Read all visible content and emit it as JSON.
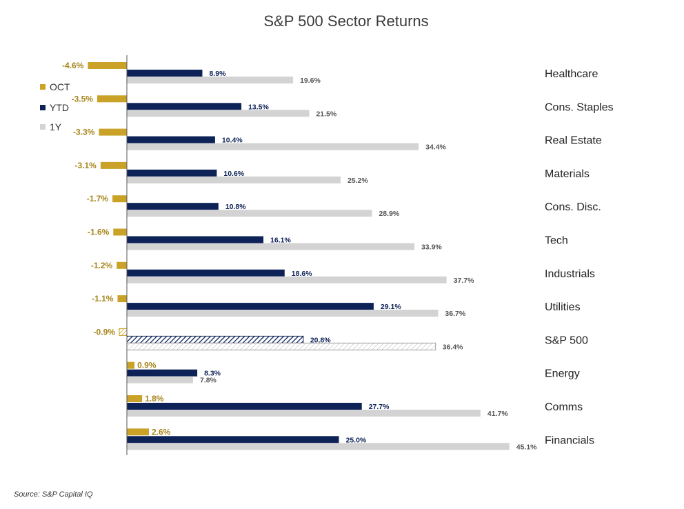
{
  "chart_data": {
    "type": "bar",
    "orientation": "horizontal",
    "title": "S&P 500 Sector Returns",
    "categories": [
      "Healthcare",
      "Cons. Staples",
      "Real Estate",
      "Materials",
      "Cons. Disc.",
      "Tech",
      "Industrials",
      "Utilities",
      "S&P 500",
      "Energy",
      "Comms",
      "Financials"
    ],
    "series": [
      {
        "name": "OCT",
        "color": "#c9a227",
        "values": [
          -4.6,
          -3.5,
          -3.3,
          -3.1,
          -1.7,
          -1.6,
          -1.2,
          -1.1,
          -0.9,
          0.9,
          1.8,
          2.6
        ],
        "labels": [
          "-4.6%",
          "-3.5%",
          "-3.3%",
          "-3.1%",
          "-1.7%",
          "-1.6%",
          "-1.2%",
          "-1.1%",
          "-0.9%",
          "0.9%",
          "1.8%",
          "2.6%"
        ]
      },
      {
        "name": "YTD",
        "color": "#0d2257",
        "values": [
          8.9,
          13.5,
          10.4,
          10.6,
          10.8,
          16.1,
          18.6,
          29.1,
          20.8,
          8.3,
          27.7,
          25.0
        ],
        "labels": [
          "8.9%",
          "13.5%",
          "10.4%",
          "10.6%",
          "10.8%",
          "16.1%",
          "18.6%",
          "29.1%",
          "20.8%",
          "8.3%",
          "27.7%",
          "25.0%"
        ]
      },
      {
        "name": "1Y",
        "color": "#d3d3d3",
        "values": [
          19.6,
          21.5,
          34.4,
          25.2,
          28.9,
          33.9,
          37.7,
          36.7,
          36.4,
          7.8,
          41.7,
          45.1
        ],
        "labels": [
          "19.6%",
          "21.5%",
          "34.4%",
          "25.2%",
          "28.9%",
          "33.9%",
          "37.7%",
          "36.7%",
          "36.4%",
          "7.8%",
          "41.7%",
          "45.1%"
        ]
      }
    ],
    "highlight_category": "S&P 500",
    "xlabel": "",
    "ylabel": "",
    "xlim": [
      -7.0,
      45.1
    ],
    "grid": false,
    "legend": {
      "position": "top-left",
      "entries": [
        "OCT",
        "YTD",
        "1Y"
      ]
    },
    "value_label_colors": {
      "OCT": "#a68418",
      "YTD": "#0d2257",
      "1Y": "#555555"
    }
  },
  "source": "Source: S&P Capital IQ"
}
